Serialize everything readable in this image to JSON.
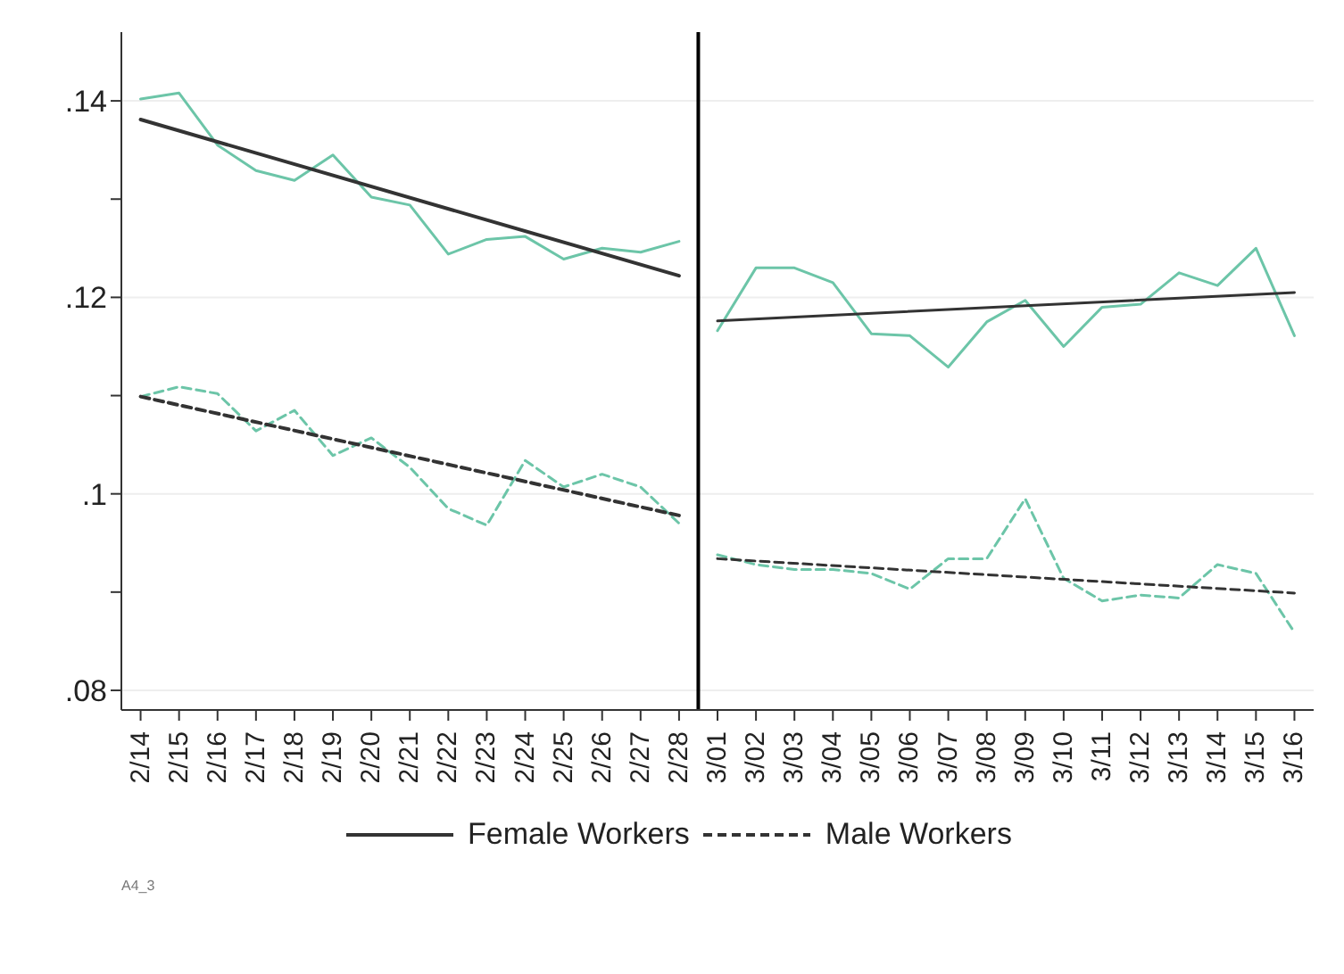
{
  "chart_data": {
    "type": "line",
    "categories": [
      "2/14",
      "2/15",
      "2/16",
      "2/17",
      "2/18",
      "2/19",
      "2/20",
      "2/21",
      "2/22",
      "2/23",
      "2/24",
      "2/25",
      "2/26",
      "2/27",
      "2/28",
      "3/01",
      "3/02",
      "3/03",
      "3/04",
      "3/05",
      "3/06",
      "3/07",
      "3/08",
      "3/09",
      "3/10",
      "3/11",
      "3/12",
      "3/13",
      "3/14",
      "3/15",
      "3/16"
    ],
    "series": [
      {
        "color": "#6cc5a8",
        "line_style": "solid",
        "x": [
          "2/14",
          "2/15",
          "2/16",
          "2/17",
          "2/18",
          "2/19",
          "2/20",
          "2/21",
          "2/22",
          "2/23",
          "2/24",
          "2/25",
          "2/26",
          "2/27",
          "2/28"
        ],
        "values": [
          0.1402,
          0.1408,
          0.1355,
          0.1329,
          0.1319,
          0.1345,
          0.1302,
          0.1294,
          0.1244,
          0.1259,
          0.1262,
          0.1239,
          0.125,
          0.1246,
          0.1257
        ]
      },
      {
        "color": "#6cc5a8",
        "line_style": "solid",
        "x": [
          "3/01",
          "3/02",
          "3/03",
          "3/04",
          "3/05",
          "3/06",
          "3/07",
          "3/08",
          "3/09",
          "3/10",
          "3/11",
          "3/12",
          "3/13",
          "3/14",
          "3/15",
          "3/16"
        ],
        "values": [
          0.1166,
          0.123,
          0.123,
          0.1215,
          0.1163,
          0.1161,
          0.1129,
          0.1175,
          0.1197,
          0.115,
          0.119,
          0.1193,
          0.1225,
          0.1212,
          0.125,
          0.1161
        ]
      },
      {
        "color": "#6cc5a8",
        "line_style": "dashed",
        "x": [
          "2/14",
          "2/15",
          "2/16",
          "2/17",
          "2/18",
          "2/19",
          "2/20",
          "2/21",
          "2/22",
          "2/23",
          "2/24",
          "2/25",
          "2/26",
          "2/27",
          "2/28"
        ],
        "values": [
          0.1099,
          0.1109,
          0.1102,
          0.1064,
          0.1085,
          0.1039,
          0.1057,
          0.1027,
          0.0985,
          0.0968,
          0.1034,
          0.1007,
          0.102,
          0.1007,
          0.097
        ]
      },
      {
        "color": "#6cc5a8",
        "line_style": "dashed",
        "x": [
          "3/01",
          "3/02",
          "3/03",
          "3/04",
          "3/05",
          "3/06",
          "3/07",
          "3/08",
          "3/09",
          "3/10",
          "3/11",
          "3/12",
          "3/13",
          "3/14",
          "3/15",
          "3/16"
        ],
        "values": [
          0.0938,
          0.0928,
          0.0923,
          0.0923,
          0.0919,
          0.0903,
          0.0934,
          0.0934,
          0.0995,
          0.0914,
          0.0891,
          0.0897,
          0.0894,
          0.0928,
          0.0919,
          0.0859
        ]
      },
      {
        "name": "Female Workers",
        "color": "#333333",
        "line_style": "solid",
        "x": [
          "2/14",
          "2/28"
        ],
        "values": [
          0.1381,
          0.1222
        ]
      },
      {
        "color": "#333333",
        "line_style": "solid",
        "x": [
          "3/01",
          "3/16"
        ],
        "values": [
          0.1176,
          0.1205
        ]
      },
      {
        "name": "Male Workers",
        "color": "#333333",
        "line_style": "dashed",
        "x": [
          "2/14",
          "2/28"
        ],
        "values": [
          0.1099,
          0.0978
        ]
      },
      {
        "color": "#333333",
        "line_style": "dashed",
        "x": [
          "3/01",
          "3/16"
        ],
        "values": [
          0.0934,
          0.0899
        ]
      }
    ],
    "ylim": [
      0.078,
      0.147
    ],
    "yticks": [
      {
        "value": 0.08,
        "label": ".08"
      },
      {
        "value": 0.09,
        "label": null
      },
      {
        "value": 0.1,
        "label": ".1"
      },
      {
        "value": 0.11,
        "label": null
      },
      {
        "value": 0.12,
        "label": ".12"
      },
      {
        "value": 0.13,
        "label": null
      },
      {
        "value": 0.14,
        "label": ".14"
      }
    ],
    "ref_lines": [
      {
        "axis": "x",
        "value": "3/01",
        "color": "#000000"
      }
    ],
    "grid": "y",
    "legend": "bottom",
    "marker": "none",
    "annotations": [
      "A4_3"
    ]
  }
}
